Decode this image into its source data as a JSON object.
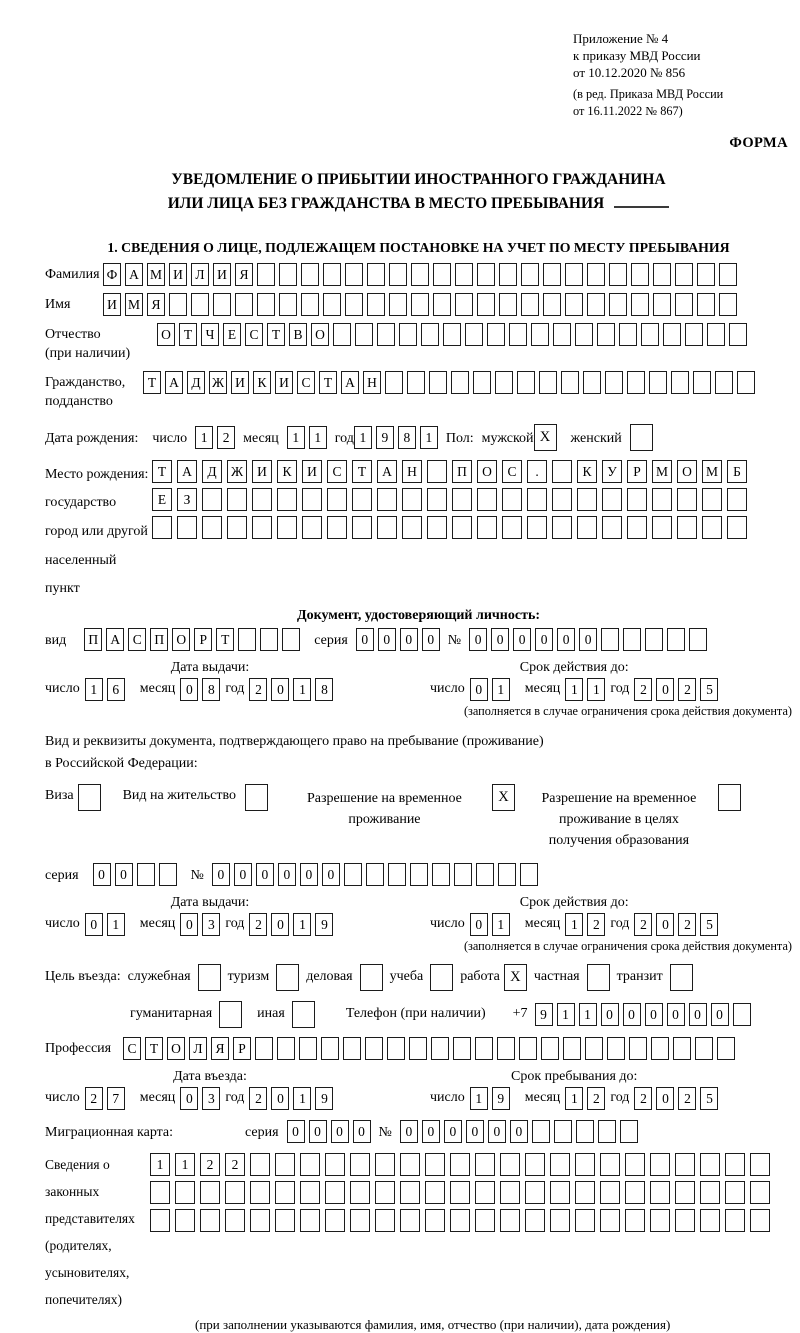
{
  "meta": {
    "appendix_line1": "Приложение № 4",
    "appendix_line2": "к приказу МВД России",
    "appendix_line3": "от 10.12.2020 № 856",
    "amend_line1": "(в ред. Приказа МВД России",
    "amend_line2": "от 16.11.2022 № 867)",
    "form_label": "ФОРМА"
  },
  "title": {
    "line1": "УВЕДОМЛЕНИЕ О ПРИБЫТИИ ИНОСТРАННОГО ГРАЖДАНИНА",
    "line2": "ИЛИ ЛИЦА БЕЗ ГРАЖДАНСТВА В МЕСТО ПРЕБЫВАНИЯ"
  },
  "section1_heading": "1. СВЕДЕНИЯ О ЛИЦЕ, ПОДЛЕЖАЩЕМ ПОСТАНОВКЕ НА УЧЕТ ПО МЕСТУ ПРЕБЫВАНИЯ",
  "labels": {
    "day": "число",
    "month": "месяц",
    "year": "год",
    "series": "серия",
    "number": "№",
    "kind": "вид",
    "phone": "Телефон (при наличии)",
    "phone_prefix": "+7"
  },
  "person": {
    "surname": {
      "label": "Фамилия",
      "value": "ФАМИЛИЯ",
      "cells": 29
    },
    "firstname": {
      "label": "Имя",
      "value": "ИМЯ",
      "cells": 29
    },
    "patronymic": {
      "label": "Отчество",
      "label2": "(при наличии)",
      "value": "ОТЧЕСТВО",
      "cells": 27
    },
    "citizenship": {
      "label": "Гражданство,",
      "label2": "подданство",
      "value": "ТАДЖИКИСТАН",
      "cells": 28
    },
    "birth_date": {
      "label": "Дата рождения:",
      "day": {
        "value": "12",
        "cells": 2
      },
      "month": {
        "value": "11",
        "cells": 2
      },
      "year": {
        "value": "1981",
        "cells": 4
      }
    },
    "sex": {
      "label": "Пол:",
      "male_label": "мужской",
      "male_checked": true,
      "female_label": "женский",
      "female_checked": false
    },
    "birth_place": {
      "label1": "Место рождения:",
      "label2": "государство",
      "label3": "город или другой",
      "label4": "населенный пункт",
      "row1": {
        "value": "ТАДЖИКИСТАН ПОС. КУРМОМБ",
        "cells": 24
      },
      "row2": {
        "value": "ЕЗ",
        "cells": 24
      },
      "row3": {
        "value": "",
        "cells": 24
      }
    }
  },
  "identity_doc": {
    "heading": "Документ, удостоверяющий личность:",
    "kind": {
      "value": "ПАСПОРТ",
      "cells": 10
    },
    "series": {
      "value": "0000",
      "cells": 4
    },
    "number": {
      "value": "000000",
      "cells": 11
    },
    "issue": {
      "header": "Дата выдачи:",
      "day": {
        "value": "16",
        "cells": 2
      },
      "month": {
        "value": "08",
        "cells": 2
      },
      "year": {
        "value": "2018",
        "cells": 4
      }
    },
    "valid": {
      "header": "Срок действия до:",
      "day": {
        "value": "01",
        "cells": 2
      },
      "month": {
        "value": "11",
        "cells": 2
      },
      "year": {
        "value": "2025",
        "cells": 4
      }
    },
    "note": "(заполняется в случае ограничения срока действия документа)"
  },
  "stay_doc": {
    "intro1": "Вид и реквизиты документа, подтверждающего право на пребывание (проживание)",
    "intro2": "в Российской Федерации:",
    "options": [
      {
        "label": "Виза",
        "checked": false
      },
      {
        "label": "Вид на жительство",
        "checked": false
      },
      {
        "label": "Разрешение на временное проживание",
        "checked": true
      },
      {
        "label": "Разрешение на временное проживание в целях получения образования",
        "checked": false
      }
    ],
    "series": {
      "value": "00",
      "cells": 4
    },
    "number": {
      "value": "000000",
      "cells": 15
    },
    "issue": {
      "header": "Дата выдачи:",
      "day": {
        "value": "01",
        "cells": 2
      },
      "month": {
        "value": "03",
        "cells": 2
      },
      "year": {
        "value": "2019",
        "cells": 4
      }
    },
    "valid": {
      "header": "Срок действия до:",
      "day": {
        "value": "01",
        "cells": 2
      },
      "month": {
        "value": "12",
        "cells": 2
      },
      "year": {
        "value": "2025",
        "cells": 4
      }
    },
    "note": "(заполняется в случае ограничения срока действия документа)"
  },
  "visit": {
    "purpose_label": "Цель въезда:",
    "purposes_row1": [
      {
        "label": "служебная",
        "checked": false
      },
      {
        "label": "туризм",
        "checked": false
      },
      {
        "label": "деловая",
        "checked": false
      },
      {
        "label": "учеба",
        "checked": false
      },
      {
        "label": "работа",
        "checked": true
      },
      {
        "label": "частная",
        "checked": false
      },
      {
        "label": "транзит",
        "checked": false
      }
    ],
    "purposes_row2": [
      {
        "label": "гуманитарная",
        "checked": false
      },
      {
        "label": "иная",
        "checked": false
      }
    ],
    "phone": {
      "value": "911000000",
      "cells": 10
    },
    "profession": {
      "label": "Профессия",
      "value": "СТОЛЯР",
      "cells": 28
    },
    "entry": {
      "header": "Дата въезда:",
      "day": {
        "value": "27",
        "cells": 2
      },
      "month": {
        "value": "03",
        "cells": 2
      },
      "year": {
        "value": "2019",
        "cells": 4
      }
    },
    "stay_until": {
      "header": "Срок пребывания до:",
      "day": {
        "value": "19",
        "cells": 2
      },
      "month": {
        "value": "12",
        "cells": 2
      },
      "year": {
        "value": "2025",
        "cells": 4
      }
    },
    "migration_card": {
      "label": "Миграционная карта:",
      "series": {
        "value": "0000",
        "cells": 4
      },
      "number": {
        "value": "000000",
        "cells": 11
      }
    }
  },
  "representatives": {
    "label_line1": "Сведения о",
    "label_line2": "законных",
    "label_line3": "представителях",
    "label_line4": "(родителях,",
    "label_line5": "усыновителях,",
    "label_line6": "попечителях)",
    "rows": [
      {
        "value": "1122",
        "cells": 25
      },
      {
        "value": "",
        "cells": 25
      },
      {
        "value": "",
        "cells": 25
      }
    ],
    "note": "(при заполнении указываются фамилия, имя, отчество (при наличии), дата рождения)"
  }
}
